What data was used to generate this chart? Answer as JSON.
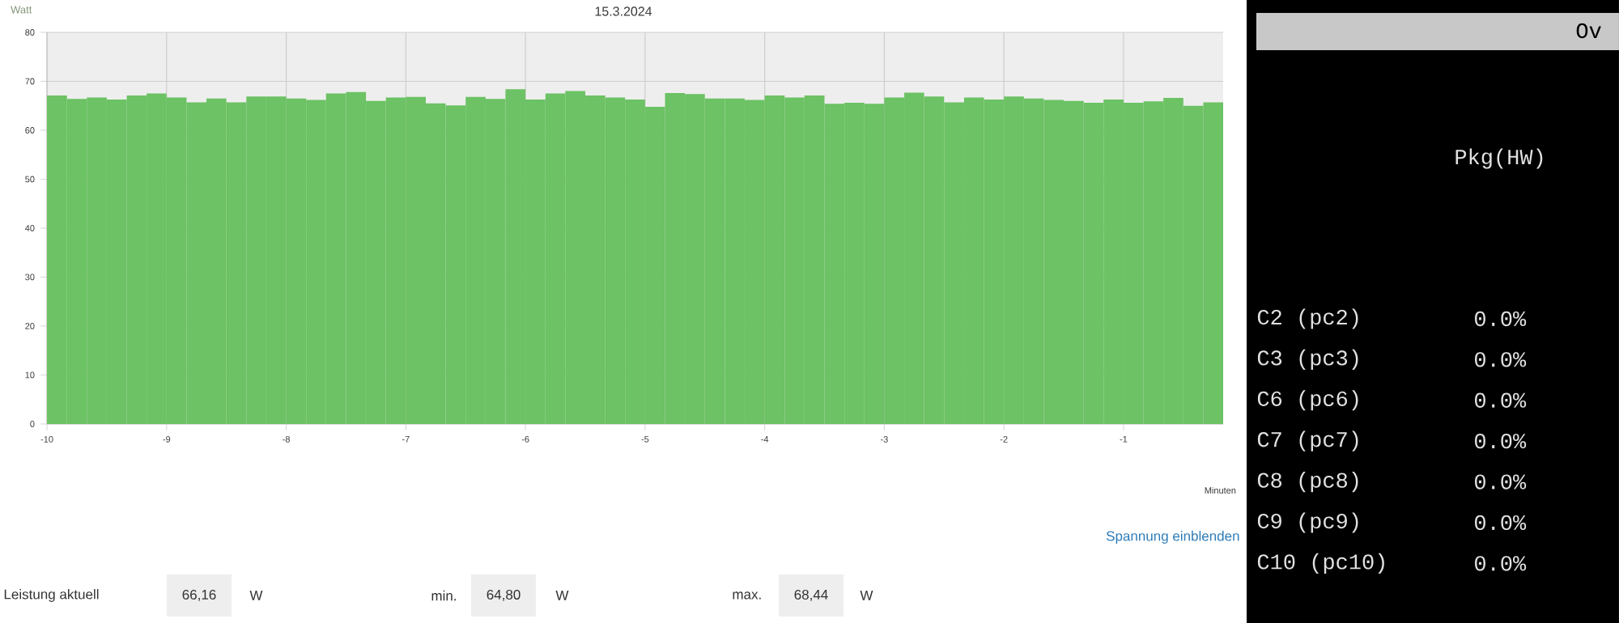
{
  "chart_data": [
    {
      "type": "histogram",
      "title": "15.3.2024",
      "ylabel": "Watt",
      "xlabel": "Minuten",
      "bins": [
        -10,
        -9.833,
        -9.667,
        -9.5,
        -9.333,
        -9.167,
        -9,
        -8.833,
        -8.667,
        -8.5,
        -8.333,
        -8.167,
        -8,
        -7.833,
        -7.667,
        -7.5,
        -7.333,
        -7.167,
        -7,
        -6.833,
        -6.667,
        -6.5,
        -6.333,
        -6.167,
        -6,
        -5.833,
        -5.667,
        -5.5,
        -5.333,
        -5.167,
        -5,
        -4.833,
        -4.667,
        -4.5,
        -4.333,
        -4.167,
        -4,
        -3.833,
        -3.667,
        -3.5,
        -3.333,
        -3.167,
        -3,
        -2.833,
        -2.667,
        -2.5,
        -2.333,
        -2.167,
        -2,
        -1.833,
        -1.667,
        -1.5,
        -1.333,
        -1.167,
        -1,
        -0.833,
        -0.667,
        -0.5,
        -0.333,
        -0.167
      ],
      "values": [
        67.1,
        66.4,
        66.7,
        66.3,
        67.1,
        67.5,
        66.7,
        65.7,
        66.5,
        65.7,
        66.9,
        66.9,
        66.5,
        66.2,
        67.5,
        67.8,
        66.0,
        66.7,
        66.8,
        65.5,
        65.1,
        66.8,
        66.4,
        68.4,
        66.3,
        67.5,
        68.0,
        67.1,
        66.7,
        66.3,
        64.8,
        67.6,
        67.4,
        66.5,
        66.5,
        66.2,
        67.1,
        66.7,
        67.1,
        65.4,
        65.6,
        65.4,
        66.7,
        67.7,
        66.9,
        65.7,
        66.7,
        66.3,
        66.9,
        66.5,
        66.2,
        66.0,
        65.6,
        66.3,
        65.6,
        65.9,
        66.6,
        65.0,
        65.7
      ],
      "color": "#6cc264",
      "xlim": [
        -10,
        -0.167
      ],
      "ylim": [
        0,
        80
      ],
      "xticks": [
        -10,
        -9,
        -8,
        -7,
        -6,
        -5,
        -4,
        -3,
        -2,
        -1
      ],
      "yticks": [
        0,
        10,
        20,
        30,
        40,
        50,
        60,
        70,
        80
      ],
      "grid": true,
      "annotations": [
        "Spannung einblenden",
        "Leistung aktuell",
        "66,16",
        "W",
        "min.",
        "64,80",
        "W",
        "max.",
        "68,44",
        "W"
      ]
    },
    {
      "type": "other",
      "annotations": [
        "Ov",
        "Pkg(HW)",
        "C2 (pc2)",
        "0.0%",
        "C3 (pc3)",
        "0.0%",
        "C6 (pc6)",
        "0.0%",
        "C7 (pc7)",
        "0.0%",
        "C8 (pc8)",
        "0.0%",
        "C9 (pc9)",
        "0.0%",
        "C10 (pc10)",
        "0.0%"
      ]
    }
  ]
}
